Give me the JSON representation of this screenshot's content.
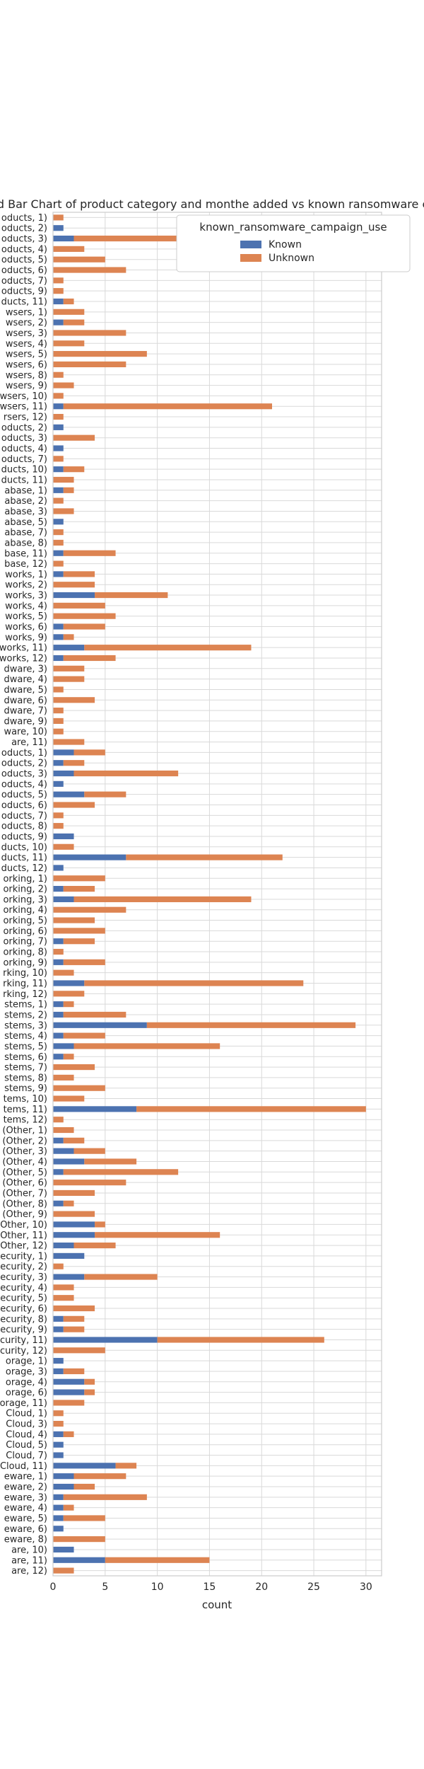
{
  "chart_data": {
    "type": "bar",
    "orientation": "horizontal",
    "stacked": true,
    "title": "ed Bar Chart of  product category and monthe added vs known ransomware camp",
    "xlabel": "count",
    "ylabel": "",
    "xlim": [
      0,
      31.5
    ],
    "x_ticks": [
      "0",
      "5",
      "10",
      "15",
      "20",
      "25",
      "30"
    ],
    "grid": true,
    "legend": {
      "title": "known_ransomware_campaign_use",
      "placement": "top-right"
    },
    "categories": [
      "are, 12)",
      "are, 11)",
      "are, 10)",
      "eware, 8)",
      "eware, 6)",
      "eware, 5)",
      "eware, 4)",
      "eware, 3)",
      "eware, 2)",
      "eware, 1)",
      "Cloud, 11)",
      "Cloud, 7)",
      "Cloud, 5)",
      "Cloud, 4)",
      "Cloud, 3)",
      "Cloud, 1)",
      "orage, 11)",
      "orage, 6)",
      "orage, 4)",
      "orage, 3)",
      "orage, 1)",
      "curity, 12)",
      "curity, 11)",
      "ecurity, 9)",
      "ecurity, 8)",
      "ecurity, 6)",
      "ecurity, 5)",
      "ecurity, 4)",
      "ecurity, 3)",
      "ecurity, 2)",
      "ecurity, 1)",
      "Other, 12)",
      "Other, 11)",
      "Other, 10)",
      "(Other, 9)",
      "(Other, 8)",
      "(Other, 7)",
      "(Other, 6)",
      "(Other, 5)",
      "(Other, 4)",
      "(Other, 3)",
      "(Other, 2)",
      "(Other, 1)",
      "tems, 12)",
      "tems, 11)",
      "tems, 10)",
      "stems, 9)",
      "stems, 8)",
      "stems, 7)",
      "stems, 6)",
      "stems, 5)",
      "stems, 4)",
      "stems, 3)",
      "stems, 2)",
      "stems, 1)",
      "rking, 12)",
      "rking, 11)",
      "rking, 10)",
      "orking, 9)",
      "orking, 8)",
      "orking, 7)",
      "orking, 6)",
      "orking, 5)",
      "orking, 4)",
      "orking, 3)",
      "orking, 2)",
      "orking, 1)",
      "ducts, 12)",
      "ducts, 11)",
      "ducts, 10)",
      "oducts, 9)",
      "oducts, 8)",
      "oducts, 7)",
      "oducts, 6)",
      "oducts, 5)",
      "oducts, 4)",
      "oducts, 3)",
      "oducts, 2)",
      "oducts, 1)",
      "are, 11)",
      "ware, 10)",
      "dware, 9)",
      "dware, 7)",
      "dware, 6)",
      "dware, 5)",
      "dware, 4)",
      "dware, 3)",
      "works, 12)",
      "works, 11)",
      "works, 9)",
      "works, 6)",
      "works, 5)",
      "works, 4)",
      "works, 3)",
      "works, 2)",
      "works, 1)",
      "base, 12)",
      "base, 11)",
      "abase, 8)",
      "abase, 7)",
      "abase, 5)",
      "abase, 3)",
      "abase, 2)",
      "abase, 1)",
      "ducts, 11)",
      "ducts, 10)",
      "oducts, 7)",
      "oducts, 4)",
      "oducts, 3)",
      "oducts, 2)",
      "rsers, 12)",
      "wsers, 11)",
      "wsers, 10)",
      "wsers, 9)",
      "wsers, 8)",
      "wsers, 6)",
      "wsers, 5)",
      "wsers, 4)",
      "wsers, 3)",
      "wsers, 2)",
      "wsers, 1)",
      "ducts, 11)",
      "oducts, 9)",
      "oducts, 7)",
      "oducts, 6)",
      "oducts, 5)",
      "oducts, 4)",
      "oducts, 3)",
      "oducts, 2)",
      "oducts, 1)"
    ],
    "series": [
      {
        "name": "Known",
        "color": "#4c72b0",
        "values": [
          0,
          5,
          2,
          0,
          1,
          1,
          1,
          1,
          2,
          2,
          6,
          1,
          1,
          1,
          0,
          0,
          0,
          3,
          3,
          1,
          1,
          0,
          10,
          1,
          1,
          0,
          0,
          0,
          3,
          0,
          3,
          2,
          4,
          4,
          0,
          1,
          0,
          0,
          1,
          3,
          2,
          1,
          0,
          0,
          8,
          0,
          0,
          0,
          0,
          1,
          2,
          1,
          9,
          1,
          1,
          0,
          3,
          0,
          1,
          0,
          1,
          0,
          0,
          0,
          2,
          1,
          0,
          1,
          7,
          0,
          2,
          0,
          0,
          0,
          3,
          1,
          2,
          1,
          2,
          0,
          0,
          0,
          0,
          0,
          0,
          0,
          0,
          1,
          3,
          1,
          1,
          0,
          0,
          4,
          0,
          1,
          0,
          1,
          0,
          0,
          1,
          0,
          0,
          1,
          0,
          1,
          0,
          1,
          0,
          1,
          0,
          1,
          0,
          0,
          0,
          0,
          0,
          0,
          0,
          1,
          0,
          1,
          0,
          0,
          0,
          0,
          0,
          2,
          1,
          0
        ]
      },
      {
        "name": "Unknown",
        "color": "#dd8452",
        "values": [
          2,
          10,
          0,
          5,
          0,
          4,
          1,
          8,
          2,
          5,
          2,
          0,
          0,
          1,
          1,
          1,
          3,
          1,
          1,
          2,
          0,
          5,
          16,
          2,
          2,
          4,
          2,
          2,
          7,
          1,
          0,
          4,
          12,
          1,
          4,
          1,
          4,
          7,
          11,
          5,
          3,
          2,
          2,
          1,
          22,
          3,
          5,
          2,
          4,
          1,
          14,
          4,
          20,
          6,
          1,
          3,
          21,
          2,
          4,
          1,
          3,
          5,
          4,
          7,
          17,
          3,
          5,
          0,
          15,
          2,
          0,
          1,
          1,
          4,
          4,
          0,
          10,
          2,
          3,
          3,
          1,
          1,
          1,
          4,
          1,
          3,
          3,
          5,
          16,
          1,
          4,
          6,
          5,
          7,
          4,
          3,
          1,
          5,
          1,
          1,
          0,
          2,
          1,
          1,
          2,
          2,
          1,
          0,
          4,
          0,
          1,
          20,
          1,
          2,
          1,
          7,
          9,
          3,
          7,
          2,
          3,
          1,
          1,
          1,
          7,
          5,
          3,
          11,
          0,
          1
        ]
      }
    ]
  }
}
